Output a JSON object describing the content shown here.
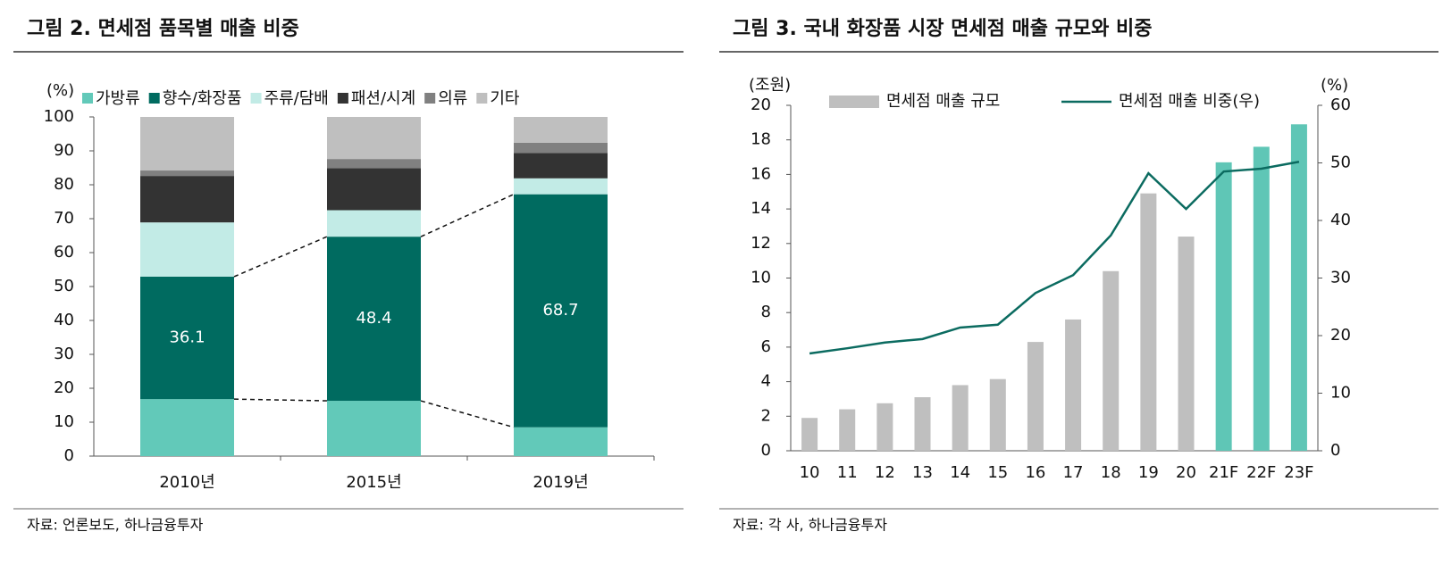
{
  "chart_data": [
    {
      "type": "stacked_bar",
      "title": "그림 2. 면세점 품목별 매출 비중",
      "y_label": "(%)",
      "source": "자료: 언론보도, 하나금융투자",
      "categories": [
        "2010년",
        "2015년",
        "2019년"
      ],
      "series": [
        {
          "name": "가방류",
          "color": "#62c9b9",
          "values": [
            16.8,
            16.3,
            8.5
          ]
        },
        {
          "name": "향수/화장품",
          "color": "#006b60",
          "values": [
            36.1,
            48.4,
            68.7
          ],
          "show_labels": true
        },
        {
          "name": "주류/담배",
          "color": "#c2ebe6",
          "values": [
            16.0,
            7.8,
            4.7
          ]
        },
        {
          "name": "패션/시계",
          "color": "#333333",
          "values": [
            13.7,
            12.4,
            7.5
          ]
        },
        {
          "name": "의류",
          "color": "#808080",
          "values": [
            1.6,
            2.7,
            3.0
          ]
        },
        {
          "name": "기타",
          "color": "#bfbfbf",
          "values": [
            15.8,
            12.4,
            7.6
          ]
        }
      ],
      "ylim": [
        0,
        100
      ],
      "yticks": [
        0,
        10,
        20,
        30,
        40,
        50,
        60,
        70,
        80,
        90,
        100
      ]
    },
    {
      "type": "combo",
      "title": "그림 3. 국내 화장품 시장 면세점 매출 규모와 비중",
      "y_label": "(조원)",
      "y2_label": "(%)",
      "source": "자료: 각 사, 하나금융투자",
      "categories": [
        "10",
        "11",
        "12",
        "13",
        "14",
        "15",
        "16",
        "17",
        "18",
        "19",
        "20",
        "21F",
        "22F",
        "23F"
      ],
      "series": [
        {
          "name": "면세점 매출 규모",
          "type": "bar",
          "color": "#bfbfbf",
          "colors": [
            "#bfbfbf",
            "#bfbfbf",
            "#bfbfbf",
            "#bfbfbf",
            "#bfbfbf",
            "#bfbfbf",
            "#bfbfbf",
            "#bfbfbf",
            "#bfbfbf",
            "#bfbfbf",
            "#bfbfbf",
            "#5fc6b6",
            "#5fc6b6",
            "#5fc6b6"
          ],
          "values": [
            1.9,
            2.4,
            2.75,
            3.1,
            3.8,
            4.15,
            6.3,
            7.6,
            10.4,
            14.9,
            12.4,
            16.7,
            17.6,
            18.9
          ]
        },
        {
          "name": "면세점 매출 비중(우)",
          "type": "line",
          "axis": "y2",
          "color": "#0b6b60",
          "values": [
            16.9,
            17.8,
            18.8,
            19.4,
            21.4,
            21.9,
            27.4,
            30.5,
            37.4,
            48.2,
            42.0,
            48.5,
            49.0,
            50.2
          ]
        }
      ],
      "ylim": [
        0,
        20
      ],
      "yticks": [
        0,
        2,
        4,
        6,
        8,
        10,
        12,
        14,
        16,
        18,
        20
      ],
      "y2lim": [
        0,
        60
      ],
      "y2ticks": [
        0,
        10,
        20,
        30,
        40,
        50,
        60
      ]
    }
  ]
}
